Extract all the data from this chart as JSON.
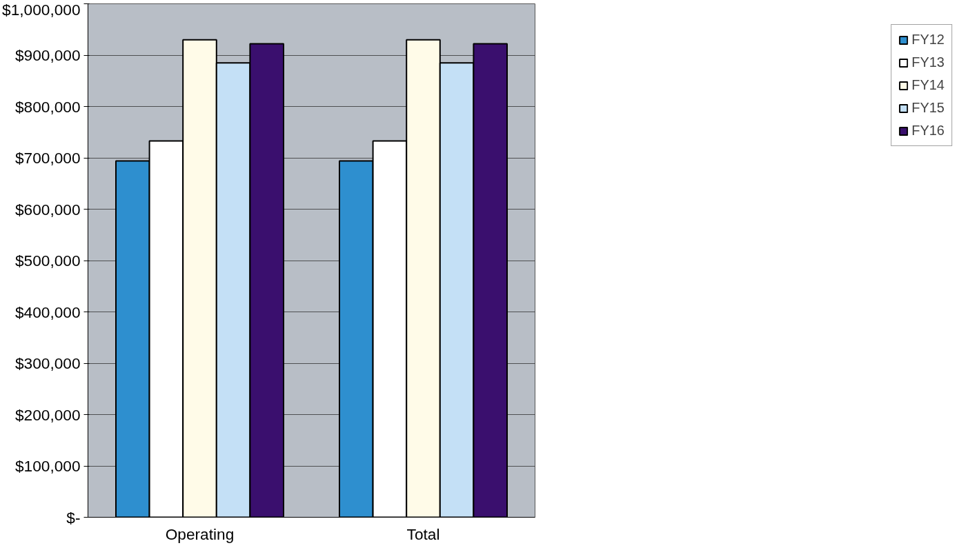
{
  "chart_data": {
    "type": "bar",
    "categories": [
      "Operating",
      "Total"
    ],
    "series": [
      {
        "name": "FY12",
        "color": "#2e8fcf",
        "values": [
          694000,
          694000
        ]
      },
      {
        "name": "FY13",
        "color": "#ffffff",
        "values": [
          733000,
          733000
        ]
      },
      {
        "name": "FY14",
        "color": "#fffbe8",
        "values": [
          930000,
          930000
        ]
      },
      {
        "name": "FY15",
        "color": "#c4e0f6",
        "values": [
          885000,
          885000
        ]
      },
      {
        "name": "FY16",
        "color": "#3a0f6e",
        "values": [
          922000,
          922000
        ]
      }
    ],
    "ylim": [
      0,
      1000000
    ],
    "yticks": [
      {
        "value": 0,
        "label": "$-"
      },
      {
        "value": 100000,
        "label": "$100,000"
      },
      {
        "value": 200000,
        "label": "$200,000"
      },
      {
        "value": 300000,
        "label": "$300,000"
      },
      {
        "value": 400000,
        "label": "$400,000"
      },
      {
        "value": 500000,
        "label": "$500,000"
      },
      {
        "value": 600000,
        "label": "$600,000"
      },
      {
        "value": 700000,
        "label": "$700,000"
      },
      {
        "value": 800000,
        "label": "$800,000"
      },
      {
        "value": 900000,
        "label": "$900,000"
      },
      {
        "value": 1000000,
        "label": "$1,000,000"
      }
    ],
    "grid": "y",
    "legend": "right"
  }
}
